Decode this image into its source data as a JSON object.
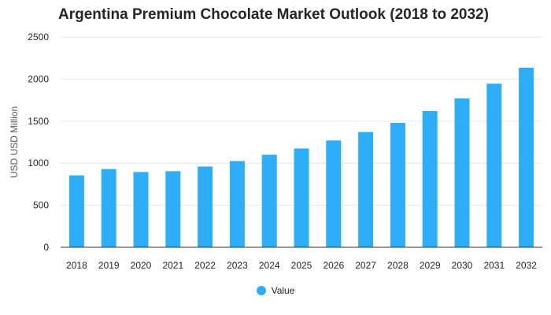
{
  "chart_data": {
    "type": "bar",
    "title": "Argentina Premium Chocolate Market Outlook (2018 to 2032)",
    "xlabel": "",
    "ylabel": "USD USD Million",
    "categories": [
      "2018",
      "2019",
      "2020",
      "2021",
      "2022",
      "2023",
      "2024",
      "2025",
      "2026",
      "2027",
      "2028",
      "2029",
      "2030",
      "2031",
      "2032"
    ],
    "series": [
      {
        "name": "Value",
        "values": [
          855,
          930,
          895,
          905,
          960,
          1025,
          1100,
          1175,
          1270,
          1370,
          1480,
          1620,
          1770,
          1945,
          2135
        ]
      }
    ],
    "ylim": [
      0,
      2500
    ],
    "yticks": [
      0,
      500,
      1000,
      1500,
      2000,
      2500
    ],
    "grid": true,
    "legend_position": "bottom",
    "colors": {
      "bar": "#2eadf8",
      "grid": "#e6e6e6",
      "axis": "#333333"
    }
  }
}
